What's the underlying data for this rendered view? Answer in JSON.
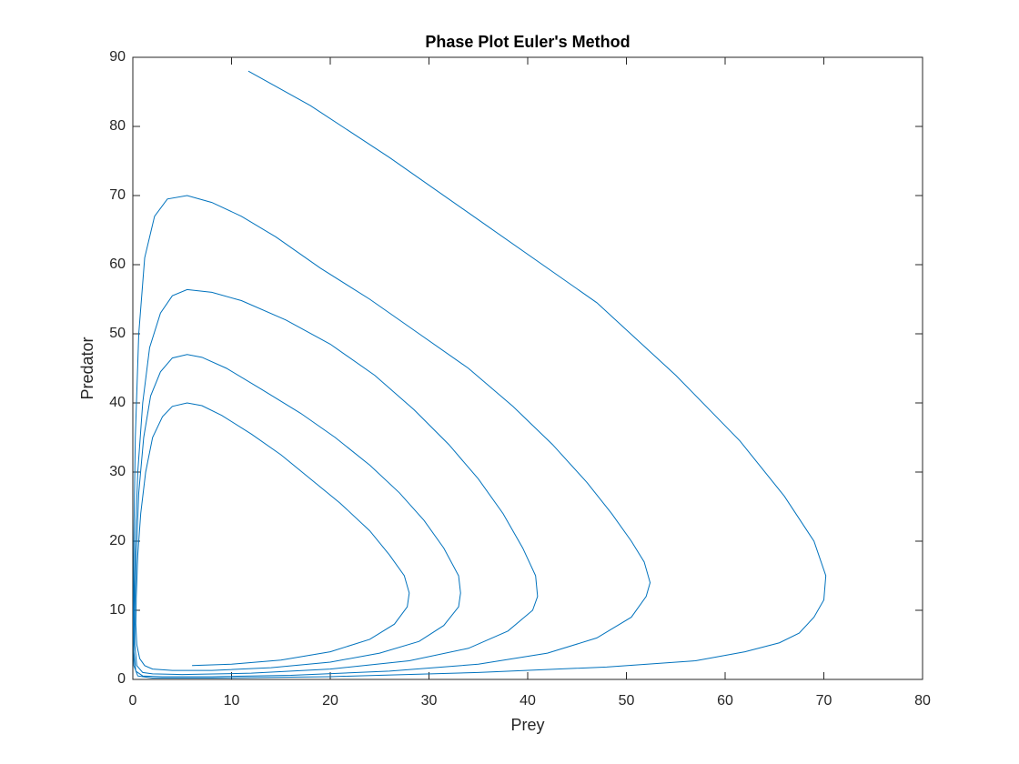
{
  "chart_data": {
    "type": "line",
    "title": "Phase Plot Euler's Method",
    "x_label": "Prey",
    "y_label": "Predator",
    "xlim": [
      0,
      80
    ],
    "ylim": [
      0,
      90
    ],
    "xticks": [
      0,
      10,
      20,
      30,
      40,
      50,
      60,
      70,
      80
    ],
    "yticks": [
      0,
      10,
      20,
      30,
      40,
      50,
      60,
      70,
      80,
      90
    ],
    "series": [
      {
        "color": "#0072BD",
        "x": [
          6,
          10,
          15,
          20,
          24,
          26.5,
          27.8,
          28,
          27.5,
          26,
          24,
          21,
          18,
          15,
          12,
          9,
          7,
          5.5,
          4,
          3,
          2,
          1.3,
          0.8,
          0.5,
          0.35,
          0.3,
          0.4,
          0.7,
          1.2,
          2,
          4,
          8,
          14,
          20,
          25,
          29,
          31.5,
          33,
          33.2,
          33,
          31.5,
          29.5,
          27,
          24,
          20.5,
          17,
          13,
          9.5,
          7,
          5.5,
          4,
          2.8,
          1.8,
          1.1,
          0.6,
          0.35,
          0.2,
          0.2,
          0.4,
          1,
          2,
          5,
          12,
          20,
          28,
          34,
          38,
          40.5,
          41,
          40.8,
          39.5,
          37.5,
          35,
          32,
          28.5,
          24.5,
          20,
          15.5,
          11,
          8,
          5.5,
          4,
          2.8,
          1.7,
          1,
          0.5,
          0.25,
          0.12,
          0.1,
          0.3,
          1,
          3,
          8,
          16,
          26,
          35,
          42,
          47,
          50.5,
          52,
          52.4,
          51.8,
          50.5,
          48.5,
          46,
          42.5,
          38.5,
          34,
          29,
          24,
          19,
          14.5,
          11,
          8,
          5.5,
          3.5,
          2.2,
          1.2,
          0.6,
          0.25,
          0.1,
          0.05,
          0.1,
          0.5,
          2,
          8,
          20,
          35,
          48,
          57,
          62,
          65.5,
          67.5,
          69,
          70,
          70.2,
          69,
          66,
          61.5,
          55,
          47,
          36,
          26,
          18,
          11.7
        ],
        "values": [
          2,
          2.2,
          2.8,
          4,
          5.8,
          8,
          10.5,
          12.5,
          15,
          18,
          21.5,
          25.5,
          29,
          32.5,
          35.5,
          38.2,
          39.6,
          40,
          39.5,
          38,
          35,
          30,
          24,
          18,
          12,
          8,
          5,
          3,
          2,
          1.5,
          1.3,
          1.3,
          1.7,
          2.5,
          3.8,
          5.5,
          7.8,
          10.5,
          12.5,
          15,
          19,
          23,
          27,
          31,
          35,
          38.5,
          42,
          45,
          46.6,
          47,
          46.5,
          44.5,
          41,
          35,
          27,
          18,
          10,
          5,
          2,
          1,
          0.8,
          0.7,
          0.9,
          1.5,
          2.7,
          4.5,
          7,
          10,
          12,
          15,
          19,
          24,
          29,
          34,
          39,
          44,
          48.5,
          52,
          54.8,
          56,
          56.4,
          55.5,
          53,
          48,
          40,
          30,
          20,
          10,
          4,
          1.2,
          0.5,
          0.4,
          0.4,
          0.6,
          1.2,
          2.2,
          3.8,
          6,
          9,
          12,
          14,
          17,
          20,
          24,
          28.5,
          34,
          39.5,
          45,
          50,
          55,
          59.5,
          64,
          67,
          69,
          70,
          69.5,
          67,
          61,
          50,
          35,
          20,
          8,
          2,
          0.5,
          0.2,
          0.2,
          0.4,
          1,
          1.8,
          2.7,
          4,
          5.3,
          6.7,
          9,
          11.5,
          15,
          20,
          26.5,
          34.5,
          44,
          54.5,
          65.5,
          75.5,
          83,
          88
        ]
      }
    ]
  }
}
